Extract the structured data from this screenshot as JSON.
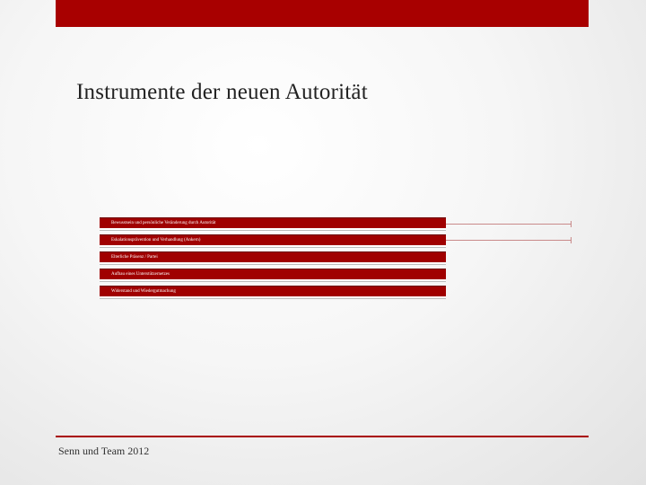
{
  "slide": {
    "title": "Instrumente der neuen Autorität",
    "footer": "Senn und Team 2012",
    "accent_color": "#a80000"
  },
  "items": [
    {
      "label": "Bewusstsein und persönliche Veränderung durch Autorität"
    },
    {
      "label": "Eskalations­prävention und Verhandlung (Ankern)"
    },
    {
      "label": "Elterliche Präsenz / Partei"
    },
    {
      "label": "Aufbau eines Unterstützernetzes"
    },
    {
      "label": "Widerstand und Wiedergutmachung"
    }
  ]
}
